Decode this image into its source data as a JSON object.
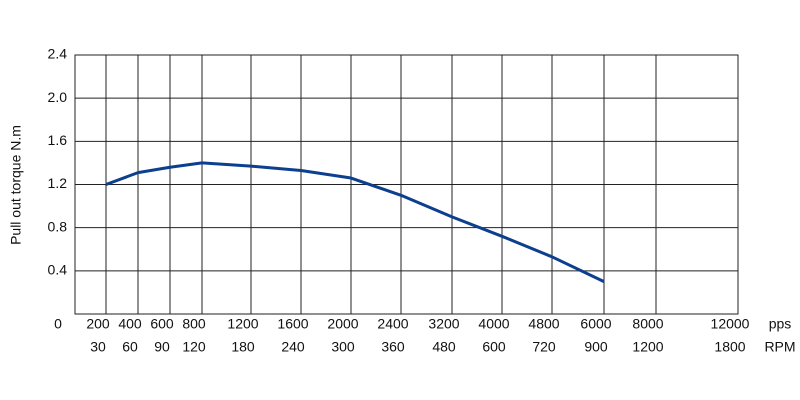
{
  "chart_data": {
    "type": "line",
    "y_label": "Pull out torque N.m",
    "x_label": "pps",
    "x2_label": "RPM",
    "categories": [
      0,
      200,
      400,
      600,
      800,
      1200,
      1600,
      2000,
      2400,
      3200,
      4000,
      4800,
      6000,
      8000,
      12000
    ],
    "rpm": [
      null,
      30,
      60,
      90,
      120,
      180,
      240,
      300,
      360,
      480,
      600,
      720,
      900,
      1200,
      1800
    ],
    "series": [
      {
        "name": "Pull out torque",
        "color": "#0d3f8f",
        "values": [
          null,
          1.2,
          1.31,
          1.36,
          1.4,
          1.37,
          1.33,
          1.26,
          1.1,
          0.9,
          0.72,
          0.53,
          0.3,
          null,
          null
        ]
      }
    ],
    "ylim": [
      0,
      2.4
    ],
    "yticks": [
      0.4,
      0.8,
      1.2,
      1.6,
      {
        "value": 2,
        "label": "2.0"
      },
      2.4
    ],
    "grid": true
  }
}
